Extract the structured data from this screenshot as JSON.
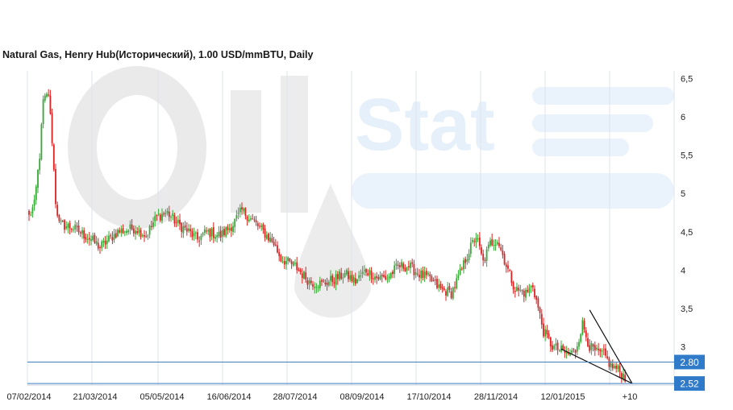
{
  "chart_data": {
    "type": "candlestick",
    "title": "Natural Gas, Henry Hub(Исторический), 1.00 USD/mmBTU, Daily",
    "watermark": "Oil Stat",
    "y_axis": {
      "position": "right",
      "range": [
        2.5,
        6.6
      ],
      "ticks": [
        "6,5",
        "6",
        "5,5",
        "5",
        "4,5",
        "4",
        "3,5",
        "3"
      ]
    },
    "x_axis": {
      "ticks": [
        "07/02/2014",
        "21/03/2014",
        "05/05/2014",
        "16/06/2014",
        "28/07/2014",
        "08/09/2014",
        "17/10/2014",
        "28/11/2014",
        "12/01/2015"
      ],
      "future_label": "+10"
    },
    "grid": true,
    "horizontal_levels": [
      {
        "value": 2.8,
        "label": "2.80"
      },
      {
        "value": 2.52,
        "label": "2.52"
      }
    ],
    "wedge_lines": [
      {
        "from": {
          "bar": 316,
          "price": 3.48
        },
        "to": {
          "bar": 340,
          "price": 2.52
        }
      },
      {
        "from": {
          "bar": 300,
          "price": 2.97
        },
        "to": {
          "bar": 340,
          "price": 2.52
        }
      }
    ],
    "colors": {
      "up": "#33aa33",
      "down": "#dd2222",
      "level_line": "#3f7fbf",
      "level_badge": "#2f7ac9",
      "grid": "#dde3ee"
    },
    "close_anchors": [
      [
        0,
        4.7
      ],
      [
        3,
        4.85
      ],
      [
        6,
        5.5
      ],
      [
        8,
        6.2
      ],
      [
        11,
        6.3
      ],
      [
        13,
        5.7
      ],
      [
        15,
        4.9
      ],
      [
        17,
        4.6
      ],
      [
        25,
        4.55
      ],
      [
        35,
        4.4
      ],
      [
        40,
        4.3
      ],
      [
        50,
        4.5
      ],
      [
        60,
        4.55
      ],
      [
        66,
        4.45
      ],
      [
        72,
        4.7
      ],
      [
        78,
        4.75
      ],
      [
        84,
        4.6
      ],
      [
        90,
        4.5
      ],
      [
        95,
        4.4
      ],
      [
        100,
        4.5
      ],
      [
        108,
        4.45
      ],
      [
        115,
        4.6
      ],
      [
        120,
        4.78
      ],
      [
        126,
        4.65
      ],
      [
        132,
        4.5
      ],
      [
        138,
        4.35
      ],
      [
        142,
        4.15
      ],
      [
        150,
        4.05
      ],
      [
        158,
        3.85
      ],
      [
        165,
        3.82
      ],
      [
        172,
        3.88
      ],
      [
        178,
        3.95
      ],
      [
        184,
        3.85
      ],
      [
        190,
        4.0
      ],
      [
        196,
        3.9
      ],
      [
        202,
        3.9
      ],
      [
        208,
        4.05
      ],
      [
        214,
        4.05
      ],
      [
        220,
        3.95
      ],
      [
        226,
        3.88
      ],
      [
        232,
        3.75
      ],
      [
        238,
        3.7
      ],
      [
        242,
        3.9
      ],
      [
        248,
        4.25
      ],
      [
        252,
        4.45
      ],
      [
        256,
        4.1
      ],
      [
        260,
        4.35
      ],
      [
        264,
        4.4
      ],
      [
        267,
        4.2
      ],
      [
        270,
        4.0
      ],
      [
        274,
        3.75
      ],
      [
        280,
        3.7
      ],
      [
        284,
        3.8
      ],
      [
        287,
        3.5
      ],
      [
        290,
        3.2
      ],
      [
        295,
        3.0
      ],
      [
        300,
        2.95
      ],
      [
        304,
        2.9
      ],
      [
        308,
        2.95
      ],
      [
        312,
        3.3
      ],
      [
        316,
        3.0
      ],
      [
        320,
        2.92
      ],
      [
        324,
        2.9
      ],
      [
        328,
        2.75
      ],
      [
        332,
        2.7
      ],
      [
        336,
        2.6
      ]
    ]
  }
}
